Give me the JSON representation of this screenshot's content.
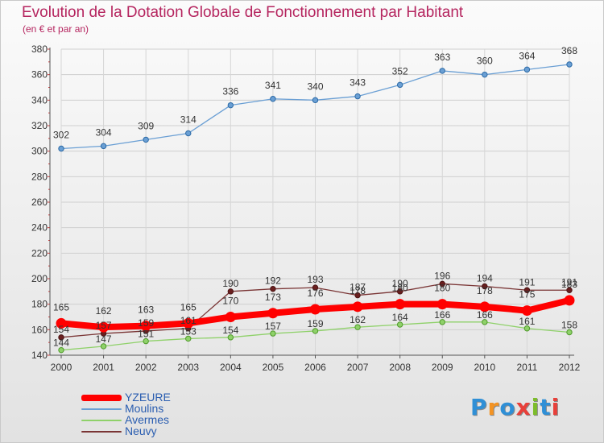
{
  "title": "Evolution de la Dotation Globale de Fonctionnement par Habitant",
  "subtitle": "(en € et par an)",
  "brand": {
    "text": "Proxiti",
    "letter_colors": [
      "#2f8fd6",
      "#f39323",
      "#2f8fd6",
      "#e8403a",
      "#7dbd2b",
      "#2f8fd6",
      "#e8403a"
    ]
  },
  "chart_data": {
    "type": "line",
    "x": [
      "2000",
      "2001",
      "2002",
      "2003",
      "2004",
      "2005",
      "2006",
      "2007",
      "2008",
      "2009",
      "2010",
      "2011",
      "2012"
    ],
    "ylim": [
      140,
      380
    ],
    "yticks": [
      140,
      160,
      180,
      200,
      220,
      240,
      260,
      280,
      300,
      320,
      340,
      360,
      380
    ],
    "grid": true,
    "legend_position": "bottom-left",
    "series": [
      {
        "name": "YZEURE",
        "color": "#ff0000",
        "values": [
          165,
          162,
          163,
          165,
          170,
          173,
          176,
          178,
          180,
          180,
          178,
          175,
          183
        ]
      },
      {
        "name": "Moulins",
        "color": "#6a9fd4",
        "values": [
          302,
          304,
          309,
          314,
          336,
          341,
          340,
          343,
          352,
          363,
          360,
          364,
          368
        ]
      },
      {
        "name": "Avermes",
        "color": "#8fd16a",
        "values": [
          144,
          147,
          151,
          153,
          154,
          157,
          159,
          162,
          164,
          166,
          166,
          161,
          158
        ]
      },
      {
        "name": "Neuvy",
        "color": "#7a3535",
        "values": [
          154,
          157,
          159,
          161,
          190,
          192,
          193,
          187,
          190,
          196,
          194,
          191,
          191
        ]
      }
    ]
  }
}
